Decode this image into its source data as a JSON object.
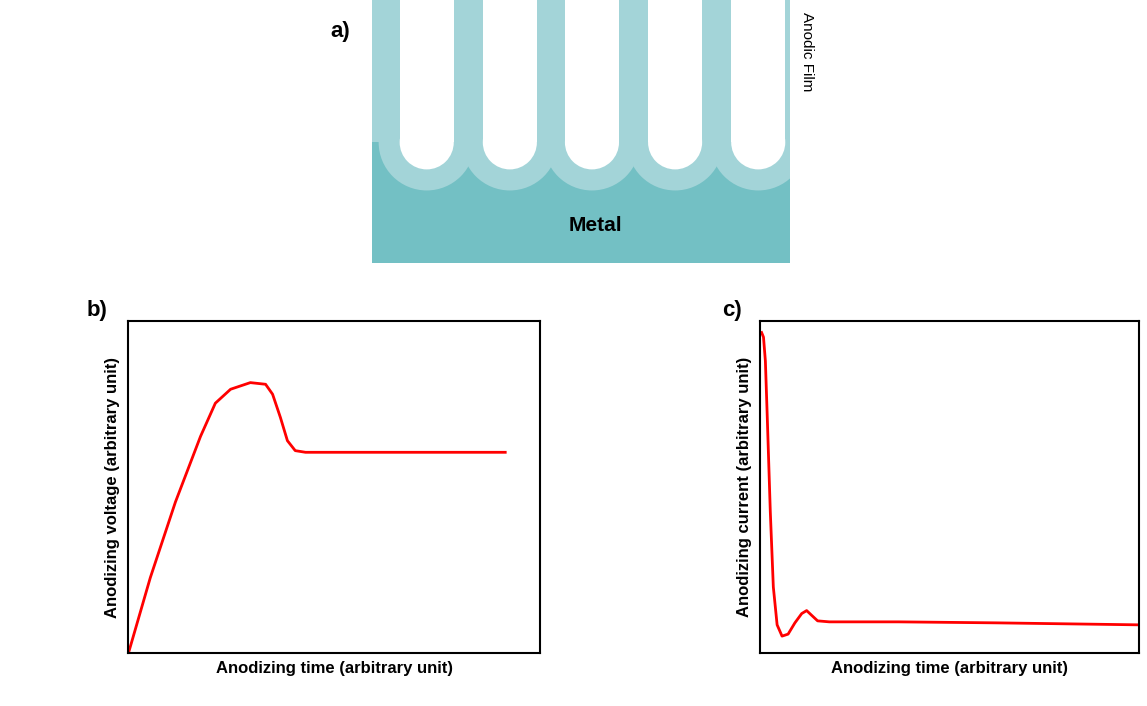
{
  "diagram": {
    "label": "a)",
    "layers": {
      "film": "Anodic Film",
      "metal": "Metal"
    }
  },
  "chart_data": [
    {
      "type": "line",
      "title": "b)",
      "x_label": "Anodizing time (arbitrary unit)",
      "y_label": "Anodizing voltage (arbitrary unit)",
      "x": [
        0,
        5.3,
        11.4,
        17.5,
        21.1,
        24.8,
        29.6,
        33.3,
        35,
        36.9,
        38.6,
        40.5,
        43,
        60,
        91.5
      ],
      "values": [
        0,
        22.7,
        45.5,
        65.3,
        75.3,
        79.5,
        81.5,
        81,
        78,
        71,
        64,
        61,
        60.5,
        60.5,
        60.5
      ],
      "color": "#ff0000",
      "xlim": [
        0,
        100
      ],
      "ylim": [
        0,
        100
      ],
      "tick_labels": false
    },
    {
      "type": "line",
      "title": "c)",
      "x_label": "Anodizing time (arbitrary unit)",
      "y_label": "Anodizing current (arbitrary unit)",
      "x": [
        0.3,
        0.8,
        1.3,
        1.8,
        2.6,
        3.4,
        4.4,
        5.7,
        7.3,
        9.1,
        10.9,
        12.2,
        13.5,
        15.1,
        18.2,
        36.4,
        62.3,
        100
      ],
      "values": [
        96.6,
        95.2,
        88,
        71,
        42.6,
        19.9,
        8.5,
        5.1,
        5.7,
        9.1,
        11.9,
        12.8,
        11.4,
        9.7,
        9.4,
        9.4,
        9.1,
        8.5
      ],
      "color": "#ff0000",
      "xlim": [
        0,
        100
      ],
      "ylim": [
        0,
        100
      ],
      "tick_labels": false
    }
  ]
}
